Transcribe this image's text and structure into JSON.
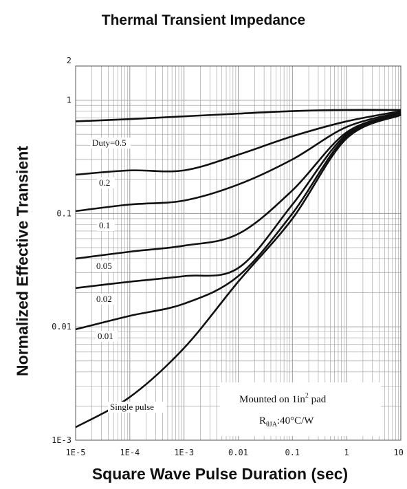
{
  "chart_data": {
    "type": "line",
    "title": "Thermal Transient Impedance",
    "xlabel": "Square Wave Pulse Duration (sec)",
    "ylabel": "Normalized Effective Transient",
    "x_scale": "log",
    "y_scale": "log",
    "xlim": [
      1e-05,
      10
    ],
    "ylim": [
      0.001,
      2
    ],
    "x_ticks": [
      "1E-5",
      "1E-4",
      "1E-3",
      "0.01",
      "0.1",
      "1",
      "10"
    ],
    "y_ticks": [
      "2",
      "1",
      "0.1",
      "0.01",
      "1E-3"
    ],
    "grid": true,
    "series": [
      {
        "name": "Duty=0.5",
        "x": [
          1e-05,
          0.0001,
          0.001,
          0.01,
          0.1,
          1,
          10
        ],
        "y": [
          0.65,
          0.68,
          0.72,
          0.76,
          0.8,
          0.82,
          0.82
        ]
      },
      {
        "name": "0.2",
        "x": [
          1e-05,
          0.0001,
          0.001,
          0.01,
          0.1,
          1,
          10
        ],
        "y": [
          0.22,
          0.24,
          0.24,
          0.33,
          0.48,
          0.65,
          0.8
        ]
      },
      {
        "name": "0.1",
        "x": [
          1e-05,
          0.0001,
          0.001,
          0.01,
          0.1,
          1,
          10
        ],
        "y": [
          0.105,
          0.12,
          0.13,
          0.18,
          0.3,
          0.58,
          0.78
        ]
      },
      {
        "name": "0.05",
        "x": [
          1e-05,
          0.0001,
          0.001,
          0.01,
          0.1,
          1,
          10
        ],
        "y": [
          0.04,
          0.046,
          0.052,
          0.066,
          0.16,
          0.52,
          0.76
        ]
      },
      {
        "name": "0.02",
        "x": [
          1e-05,
          0.0001,
          0.001,
          0.01,
          0.1,
          1,
          10
        ],
        "y": [
          0.022,
          0.025,
          0.028,
          0.033,
          0.12,
          0.5,
          0.75
        ]
      },
      {
        "name": "0.01",
        "x": [
          1e-05,
          0.0001,
          0.001,
          0.01,
          0.1,
          1,
          10
        ],
        "y": [
          0.0095,
          0.0125,
          0.016,
          0.028,
          0.1,
          0.48,
          0.75
        ]
      },
      {
        "name": "Single pulse",
        "x": [
          1e-05,
          0.0001,
          0.001,
          0.01,
          0.1,
          1,
          10
        ],
        "y": [
          0.0013,
          0.0024,
          0.0065,
          0.025,
          0.09,
          0.46,
          0.74
        ]
      }
    ],
    "annotations": {
      "line1_prefix": "Mounted on 1in",
      "line1_sup": "2",
      "line1_suffix": " pad",
      "line2_main": "R",
      "line2_sub": "θJA",
      "line2_suffix": ":40°C/W"
    },
    "colors": {
      "line": "#111111",
      "grid": "#9a9a9a",
      "background": "#ffffff"
    }
  }
}
